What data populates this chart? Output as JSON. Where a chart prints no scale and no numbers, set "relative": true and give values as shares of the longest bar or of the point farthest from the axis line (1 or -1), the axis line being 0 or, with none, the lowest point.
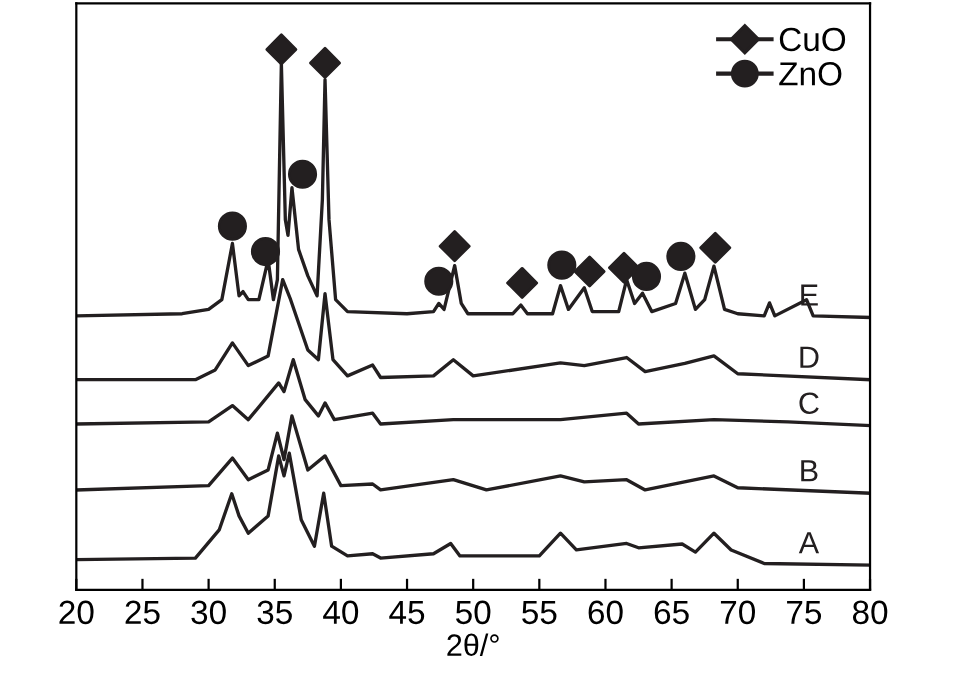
{
  "chart_data": {
    "type": "line",
    "relative": true,
    "xlabel": "2θ/°",
    "xlim": [
      20,
      80
    ],
    "xticks": [
      20,
      25,
      30,
      35,
      40,
      45,
      50,
      55,
      60,
      65,
      70,
      75,
      80
    ],
    "tick_labels": "x",
    "grid": false,
    "legend": "top right",
    "series": [
      {
        "name": "E",
        "color": "#231f20",
        "x": [
          20,
          28,
          30,
          31,
          31.8,
          32.3,
          32.6,
          33,
          33.8,
          34.5,
          34.9,
          35.2,
          35.5,
          35.8,
          36.0,
          36.3,
          36.8,
          37.5,
          38.2,
          38.6,
          38.8,
          39.1,
          39.6,
          40.5,
          45,
          47.0,
          47.4,
          47.8,
          48.6,
          49.1,
          49.6,
          53,
          53.6,
          54.1,
          56.0,
          56.6,
          57.2,
          58.4,
          59.0,
          61.0,
          61.6,
          62.2,
          62.8,
          63.5,
          65.3,
          66.0,
          66.8,
          67.5,
          68.2,
          69,
          70,
          72.0,
          72.4,
          72.8,
          75.2,
          75.7,
          80
        ],
        "values": [
          0.507,
          0.511,
          0.519,
          0.537,
          0.641,
          0.544,
          0.552,
          0.537,
          0.537,
          0.611,
          0.537,
          0.574,
          0.974,
          0.685,
          0.656,
          0.744,
          0.63,
          0.581,
          0.544,
          0.722,
          0.944,
          0.685,
          0.537,
          0.515,
          0.511,
          0.515,
          0.53,
          0.519,
          0.6,
          0.53,
          0.511,
          0.511,
          0.527,
          0.511,
          0.511,
          0.563,
          0.519,
          0.559,
          0.515,
          0.515,
          0.574,
          0.53,
          0.549,
          0.515,
          0.53,
          0.586,
          0.519,
          0.537,
          0.599,
          0.519,
          0.511,
          0.507,
          0.531,
          0.507,
          0.537,
          0.507,
          0.504
        ]
      },
      {
        "name": "D",
        "color": "#231f20",
        "x": [
          20,
          29,
          30.5,
          31.8,
          33,
          34.5,
          35.6,
          36.2,
          37.5,
          38.3,
          38.8,
          39.4,
          40.5,
          42.4,
          43,
          47,
          48.5,
          50,
          56.6,
          58.4,
          61.6,
          63,
          66,
          68.2,
          70,
          80
        ],
        "values": [
          0.389,
          0.389,
          0.407,
          0.457,
          0.415,
          0.433,
          0.574,
          0.537,
          0.444,
          0.426,
          0.548,
          0.426,
          0.396,
          0.416,
          0.393,
          0.396,
          0.426,
          0.396,
          0.42,
          0.415,
          0.43,
          0.404,
          0.419,
          0.433,
          0.4,
          0.389
        ]
      },
      {
        "name": "C",
        "color": "#231f20",
        "x": [
          20,
          30,
          31.8,
          33,
          35.3,
          35.7,
          36.4,
          37.3,
          38.3,
          38.8,
          39.5,
          42.4,
          43,
          48.5,
          56.6,
          61.6,
          62.5,
          68.2,
          73.8,
          80
        ],
        "values": [
          0.307,
          0.311,
          0.341,
          0.315,
          0.383,
          0.367,
          0.426,
          0.352,
          0.322,
          0.346,
          0.315,
          0.327,
          0.307,
          0.315,
          0.315,
          0.327,
          0.307,
          0.315,
          0.311,
          0.304
        ]
      },
      {
        "name": "B",
        "color": "#231f20",
        "x": [
          20,
          30,
          31.8,
          33,
          34.5,
          35.2,
          35.7,
          36.3,
          37.5,
          38.8,
          40,
          42.4,
          43,
          48.5,
          51,
          56.6,
          58.4,
          61.6,
          63,
          68.2,
          70,
          80
        ],
        "values": [
          0.185,
          0.193,
          0.244,
          0.204,
          0.222,
          0.29,
          0.241,
          0.322,
          0.222,
          0.248,
          0.193,
          0.196,
          0.185,
          0.204,
          0.185,
          0.211,
          0.2,
          0.204,
          0.185,
          0.211,
          0.189,
          0.179
        ]
      },
      {
        "name": "A",
        "color": "#231f20",
        "x": [
          20,
          29,
          30.8,
          31.75,
          32.3,
          33,
          34.5,
          35.3,
          35.7,
          36.1,
          37,
          38,
          38.7,
          39.3,
          40.5,
          42.4,
          43,
          47,
          48.3,
          49,
          55,
          56.6,
          57.8,
          61.6,
          62.5,
          65.8,
          66.8,
          68.2,
          69.5,
          72,
          80
        ],
        "values": [
          0.056,
          0.059,
          0.111,
          0.178,
          0.137,
          0.105,
          0.137,
          0.248,
          0.211,
          0.253,
          0.13,
          0.081,
          0.179,
          0.081,
          0.063,
          0.067,
          0.059,
          0.067,
          0.086,
          0.063,
          0.063,
          0.105,
          0.074,
          0.086,
          0.078,
          0.085,
          0.07,
          0.105,
          0.074,
          0.049,
          0.046
        ]
      },
      {
        "name": "CuO",
        "type": "scatter",
        "marker": "diamond",
        "color": "#231f20",
        "x": [
          35.5,
          38.8,
          48.6,
          53.7,
          58.8,
          61.4,
          68.3
        ],
        "values": [
          1.0,
          0.975,
          0.636,
          0.568,
          0.589,
          0.596,
          0.633
        ]
      },
      {
        "name": "ZnO",
        "type": "scatter",
        "marker": "circle",
        "color": "#231f20",
        "x": [
          31.8,
          34.3,
          37.1,
          47.4,
          56.7,
          63.1,
          65.7
        ],
        "values": [
          0.673,
          0.626,
          0.769,
          0.571,
          0.601,
          0.58,
          0.617
        ]
      }
    ]
  }
}
